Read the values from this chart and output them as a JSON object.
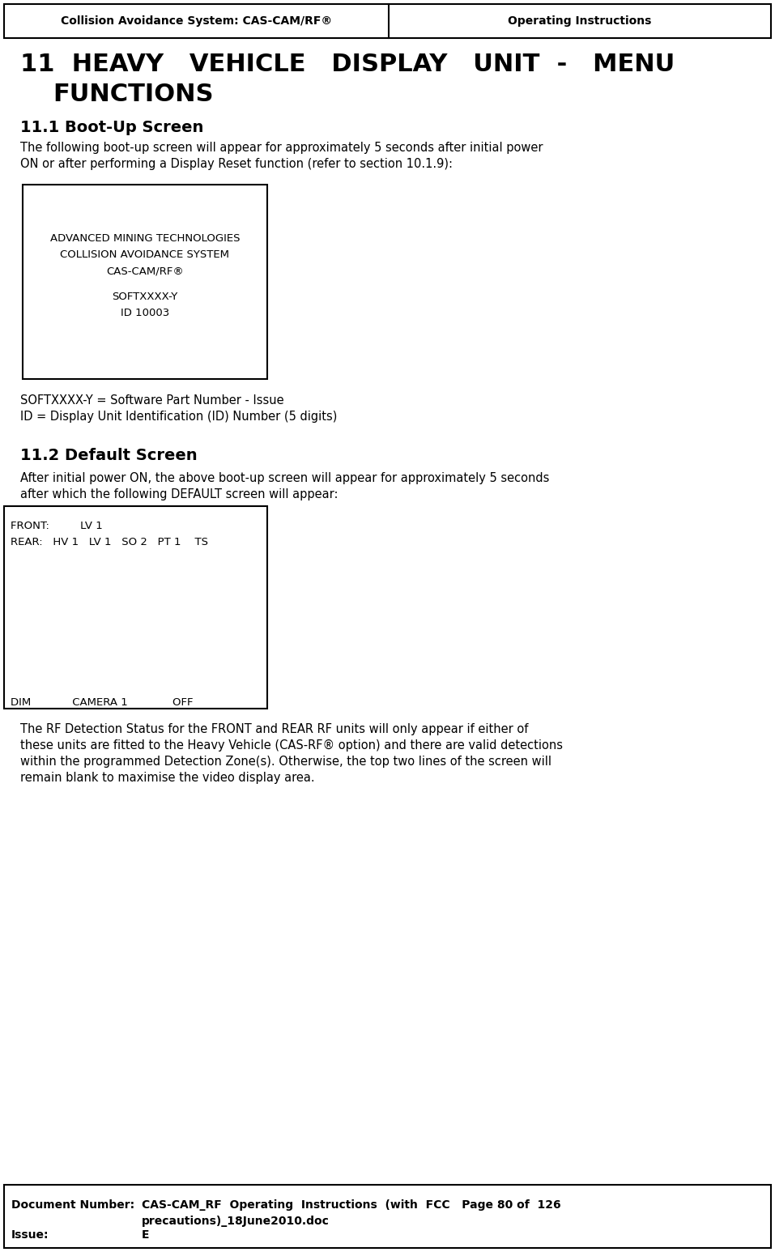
{
  "header_left": "Collision Avoidance System: CAS-CAM/RF®",
  "header_right": "Operating Instructions",
  "subsection1_title": "11.1 Boot-Up Screen",
  "subsection1_body1": "The following boot-up screen will appear for approximately 5 seconds after initial power",
  "subsection1_body2": "ON or after performing a Display Reset function (refer to section 10.1.9):",
  "bootup_line1": "ADVANCED MINING TECHNOLOGIES",
  "bootup_line2": "COLLISION AVOIDANCE SYSTEM",
  "bootup_line3": "CAS-CAM/RF®",
  "bootup_line4": "SOFTXXXX-Y",
  "bootup_line5": "ID 10003",
  "legend1": "SOFTXXXX-Y = Software Part Number - Issue",
  "legend2": "ID = Display Unit Identification (ID) Number (5 digits)",
  "subsection2_title": "11.2 Default Screen",
  "subsection2_body1": "After initial power ON, the above boot-up screen will appear for approximately 5 seconds",
  "subsection2_body2": "after which the following DEFAULT screen will appear:",
  "default_line1": "FRONT:         LV 1",
  "default_line2": "REAR:   HV 1   LV 1   SO 2   PT 1    TS",
  "default_bottom": "DIM            CAMERA 1             OFF",
  "footer_para1": "The RF Detection Status for the FRONT and REAR RF units will only appear if either of",
  "footer_para2": "these units are fitted to the Heavy Vehicle (CAS-RF® option) and there are valid detections",
  "footer_para3": "within the programmed Detection Zone(s). Otherwise, the top two lines of the screen will",
  "footer_para4": "remain blank to maximise the video display area.",
  "doc_label": "Document Number:",
  "doc_value1": "CAS-CAM_RF  Operating  Instructions  (with  FCC   Page 80 of  126",
  "doc_value2": "precautions)_18June2010.doc",
  "issue_label": "Issue:",
  "issue_value": "E",
  "bg": "#ffffff",
  "fg": "#000000"
}
